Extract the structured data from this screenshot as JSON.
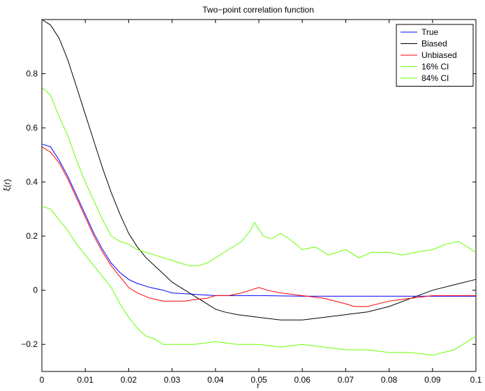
{
  "chart_data": {
    "type": "line",
    "title": "Two−point correlation function",
    "xlabel": "r",
    "ylabel": "ξ(r)",
    "xlim": [
      0,
      0.1
    ],
    "ylim": [
      -0.3,
      1.0
    ],
    "xticks": [
      0,
      0.01,
      0.02,
      0.03,
      0.04,
      0.05,
      0.06,
      0.07,
      0.08,
      0.09,
      0.1
    ],
    "xtick_labels": [
      "0",
      "0.01",
      "0.02",
      "0.03",
      "0.04",
      "0.05",
      "0.06",
      "0.07",
      "0.08",
      "0.09",
      "0.1"
    ],
    "yticks": [
      -0.2,
      0,
      0.2,
      0.4,
      0.6,
      0.8
    ],
    "ytick_labels": [
      "−0.2",
      "0",
      "0.2",
      "0.4",
      "0.6",
      "0.8"
    ],
    "grid": false,
    "legend_position": "top-right",
    "series": [
      {
        "name": "True",
        "color": "#0000ff",
        "x": [
          0,
          0.002,
          0.004,
          0.006,
          0.008,
          0.01,
          0.012,
          0.014,
          0.016,
          0.018,
          0.02,
          0.022,
          0.025,
          0.028,
          0.03,
          0.035,
          0.04,
          0.05,
          0.06,
          0.07,
          0.08,
          0.09,
          0.1
        ],
        "y": [
          0.54,
          0.53,
          0.48,
          0.42,
          0.35,
          0.28,
          0.21,
          0.15,
          0.1,
          0.065,
          0.04,
          0.025,
          0.01,
          0.0,
          -0.01,
          -0.015,
          -0.02,
          -0.02,
          -0.022,
          -0.022,
          -0.022,
          -0.022,
          -0.022
        ]
      },
      {
        "name": "Biased",
        "color": "#000000",
        "x": [
          0,
          0.002,
          0.004,
          0.006,
          0.008,
          0.01,
          0.012,
          0.014,
          0.016,
          0.018,
          0.02,
          0.022,
          0.024,
          0.026,
          0.028,
          0.03,
          0.032,
          0.034,
          0.036,
          0.038,
          0.04,
          0.042,
          0.045,
          0.05,
          0.055,
          0.06,
          0.065,
          0.07,
          0.075,
          0.08,
          0.085,
          0.09,
          0.095,
          0.1
        ],
        "y": [
          1.0,
          0.98,
          0.93,
          0.85,
          0.75,
          0.65,
          0.55,
          0.45,
          0.36,
          0.28,
          0.21,
          0.16,
          0.12,
          0.09,
          0.06,
          0.03,
          0.01,
          -0.01,
          -0.03,
          -0.05,
          -0.07,
          -0.08,
          -0.09,
          -0.1,
          -0.11,
          -0.11,
          -0.1,
          -0.09,
          -0.08,
          -0.06,
          -0.03,
          0.0,
          0.02,
          0.04
        ]
      },
      {
        "name": "Unbiased",
        "color": "#ff0000",
        "x": [
          0,
          0.002,
          0.004,
          0.006,
          0.008,
          0.01,
          0.012,
          0.014,
          0.016,
          0.018,
          0.02,
          0.022,
          0.025,
          0.028,
          0.03,
          0.033,
          0.035,
          0.038,
          0.04,
          0.043,
          0.046,
          0.048,
          0.05,
          0.052,
          0.055,
          0.06,
          0.065,
          0.07,
          0.072,
          0.075,
          0.08,
          0.085,
          0.09,
          0.095,
          0.1
        ],
        "y": [
          0.53,
          0.51,
          0.47,
          0.41,
          0.34,
          0.27,
          0.2,
          0.14,
          0.09,
          0.05,
          0.01,
          -0.01,
          -0.03,
          -0.04,
          -0.04,
          -0.04,
          -0.035,
          -0.03,
          -0.02,
          -0.02,
          -0.01,
          0.0,
          0.01,
          0.0,
          -0.01,
          -0.02,
          -0.03,
          -0.05,
          -0.06,
          -0.06,
          -0.04,
          -0.03,
          -0.02,
          -0.02,
          -0.02
        ]
      },
      {
        "name": "16% CI",
        "color": "#66ff00",
        "x": [
          0,
          0.002,
          0.004,
          0.006,
          0.008,
          0.01,
          0.012,
          0.014,
          0.016,
          0.018,
          0.02,
          0.022,
          0.024,
          0.026,
          0.028,
          0.03,
          0.035,
          0.04,
          0.045,
          0.05,
          0.055,
          0.06,
          0.065,
          0.07,
          0.075,
          0.08,
          0.085,
          0.09,
          0.095,
          0.1
        ],
        "y": [
          0.31,
          0.3,
          0.26,
          0.22,
          0.17,
          0.13,
          0.09,
          0.05,
          0.01,
          -0.05,
          -0.1,
          -0.14,
          -0.17,
          -0.18,
          -0.2,
          -0.2,
          -0.2,
          -0.19,
          -0.2,
          -0.2,
          -0.21,
          -0.2,
          -0.21,
          -0.22,
          -0.22,
          -0.23,
          -0.23,
          -0.24,
          -0.22,
          -0.17
        ]
      },
      {
        "name": "84% CI",
        "color": "#66ff00",
        "x": [
          0,
          0.002,
          0.004,
          0.006,
          0.008,
          0.01,
          0.012,
          0.014,
          0.016,
          0.018,
          0.02,
          0.022,
          0.024,
          0.026,
          0.028,
          0.03,
          0.032,
          0.034,
          0.036,
          0.038,
          0.04,
          0.043,
          0.046,
          0.048,
          0.049,
          0.051,
          0.053,
          0.055,
          0.057,
          0.06,
          0.063,
          0.066,
          0.07,
          0.073,
          0.076,
          0.08,
          0.083,
          0.086,
          0.09,
          0.093,
          0.096,
          0.1
        ],
        "y": [
          0.75,
          0.72,
          0.64,
          0.57,
          0.48,
          0.4,
          0.33,
          0.26,
          0.2,
          0.18,
          0.17,
          0.15,
          0.14,
          0.13,
          0.12,
          0.11,
          0.1,
          0.09,
          0.09,
          0.1,
          0.12,
          0.15,
          0.18,
          0.22,
          0.25,
          0.2,
          0.19,
          0.21,
          0.19,
          0.15,
          0.16,
          0.13,
          0.15,
          0.12,
          0.14,
          0.14,
          0.13,
          0.14,
          0.15,
          0.17,
          0.18,
          0.14
        ]
      }
    ]
  }
}
